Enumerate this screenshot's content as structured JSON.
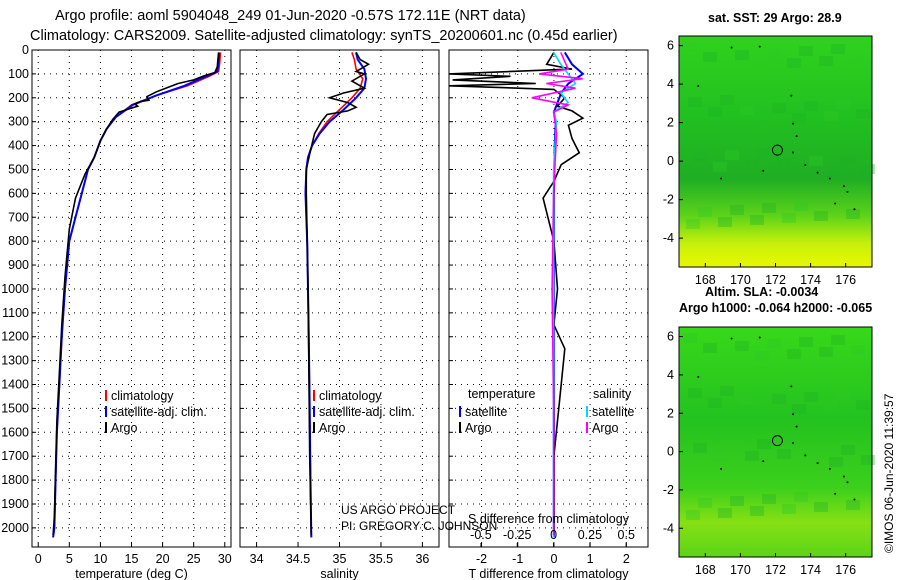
{
  "header": {
    "line1": "Argo profile: aoml 5904048_249 01-Jun-2020 -0.57S 172.11E (NRT data)",
    "line2": "Climatology: CARS2009. Satellite-adjusted climatology: synTS_20200601.nc (0.45d earlier)"
  },
  "colors": {
    "climatology": "#ff0000",
    "satellite_adj": "#0000ff",
    "argo": "#000000",
    "s_satellite": "#00d8ff",
    "s_argo": "#ff00ff"
  },
  "chart_data": [
    {
      "id": "temperature",
      "type": "line",
      "xlabel": "temperature (deg C)",
      "ylabel": "",
      "xlim": [
        -1,
        31
      ],
      "ylim": [
        2080,
        0
      ],
      "xticks": [
        0,
        5,
        10,
        15,
        20,
        25,
        30
      ],
      "yticks": [
        0,
        100,
        200,
        300,
        400,
        500,
        600,
        700,
        800,
        900,
        1000,
        1100,
        1200,
        1300,
        1400,
        1500,
        1600,
        1700,
        1800,
        1900,
        2000
      ],
      "legend": [
        "climatology",
        "satellite-adj. clim.",
        "Argo"
      ],
      "series": [
        {
          "name": "climatology",
          "color": "climatology",
          "x": [
            29.3,
            29.2,
            29.0,
            27.5,
            24.0,
            19.0,
            15.0,
            12.5,
            11.0,
            10.0,
            9.0,
            8.0,
            7.0,
            6.0,
            5.0,
            4.3,
            3.8,
            3.4,
            3.0,
            2.8,
            2.6,
            2.4
          ],
          "y": [
            10,
            50,
            90,
            110,
            150,
            190,
            230,
            280,
            330,
            380,
            450,
            500,
            600,
            700,
            800,
            1000,
            1200,
            1400,
            1600,
            1800,
            2000,
            2040
          ]
        },
        {
          "name": "satellite-adj. clim.",
          "color": "satellite_adj",
          "x": [
            29.1,
            29.0,
            28.8,
            27.0,
            23.5,
            19.0,
            15.2,
            12.5,
            11.0,
            10.0,
            9.0,
            8.0,
            7.0,
            6.0,
            5.0,
            4.3,
            3.8,
            3.4,
            3.0,
            2.8,
            2.6,
            2.4
          ],
          "y": [
            10,
            50,
            90,
            110,
            150,
            190,
            230,
            280,
            330,
            380,
            450,
            500,
            600,
            700,
            800,
            1000,
            1200,
            1400,
            1600,
            1800,
            2000,
            2040
          ]
        },
        {
          "name": "Argo",
          "color": "argo",
          "x": [
            29.0,
            28.9,
            28.8,
            28.4,
            27.0,
            26.5,
            25.0,
            22.5,
            20.5,
            19.0,
            17.5,
            17.8,
            16.5,
            15.5,
            16.0,
            13.0,
            12.0,
            11.0,
            10.0,
            9.0,
            7.5,
            6.0,
            5.0,
            4.3,
            3.8,
            3.4,
            3.0,
            2.8,
            2.6,
            2.4
          ],
          "y": [
            10,
            40,
            70,
            95,
            105,
            110,
            125,
            140,
            160,
            175,
            195,
            210,
            215,
            225,
            235,
            260,
            290,
            330,
            380,
            450,
            520,
            620,
            750,
            950,
            1150,
            1350,
            1550,
            1750,
            1950,
            2030
          ]
        }
      ]
    },
    {
      "id": "salinity",
      "type": "line",
      "xlabel": "salinity",
      "xlim": [
        33.8,
        36.2
      ],
      "ylim": [
        2080,
        0
      ],
      "xticks": [
        34,
        34.5,
        35,
        35.5,
        36
      ],
      "legend": [
        "climatology",
        "satellite-adj. clim.",
        "Argo"
      ],
      "series": [
        {
          "name": "climatology",
          "color": "climatology",
          "x": [
            35.15,
            35.18,
            35.2,
            35.28,
            35.25,
            35.15,
            35.0,
            34.85,
            34.75,
            34.67,
            34.62,
            34.6,
            34.59,
            34.6,
            34.61,
            34.62,
            34.63,
            34.64,
            34.65,
            34.66
          ],
          "y": [
            10,
            40,
            80,
            120,
            160,
            200,
            250,
            300,
            350,
            400,
            450,
            500,
            600,
            700,
            800,
            1000,
            1200,
            1500,
            1800,
            2040
          ]
        },
        {
          "name": "satellite-adj. clim.",
          "color": "satellite_adj",
          "x": [
            35.2,
            35.22,
            35.3,
            35.32,
            35.3,
            35.2,
            35.05,
            34.88,
            34.76,
            34.67,
            34.62,
            34.6,
            34.59,
            34.6,
            34.61,
            34.62,
            34.63,
            34.64,
            34.65,
            34.66
          ],
          "y": [
            10,
            40,
            80,
            120,
            160,
            200,
            250,
            300,
            350,
            400,
            450,
            500,
            600,
            700,
            800,
            1000,
            1200,
            1500,
            1800,
            2040
          ]
        },
        {
          "name": "Argo",
          "color": "argo",
          "x": [
            35.2,
            35.25,
            35.35,
            35.2,
            35.3,
            35.15,
            35.3,
            35.05,
            34.88,
            35.1,
            35.2,
            35.1,
            34.85,
            34.78,
            34.7,
            34.65,
            34.6,
            34.6,
            34.61,
            34.62,
            34.63,
            34.64,
            34.66
          ],
          "y": [
            10,
            40,
            60,
            90,
            100,
            130,
            160,
            180,
            200,
            220,
            240,
            255,
            270,
            300,
            350,
            420,
            500,
            600,
            800,
            1000,
            1300,
            1700,
            2030
          ]
        }
      ]
    },
    {
      "id": "differences",
      "type": "line",
      "xlabel": "T difference from climatology",
      "xlabel_top": "S difference from climatology",
      "xlim": [
        -2.9,
        2.6
      ],
      "ylim": [
        2080,
        0
      ],
      "xticks": [
        -2,
        -1,
        0,
        1,
        2
      ],
      "sticks": [
        -0.5,
        -0.25,
        0,
        0.25,
        0.5
      ],
      "slim": [
        -0.72,
        0.65
      ],
      "legend_left_title": "temperature",
      "legend_right_title": "salinity",
      "legend": [
        "satellite",
        "Argo",
        "satellite",
        "Argo"
      ],
      "series": [
        {
          "name": "T satellite",
          "color": "satellite_adj",
          "axis": "T",
          "x": [
            0.3,
            0.5,
            0.8,
            0.4,
            0.2,
            0.1,
            0.0,
            0.05,
            0.02,
            0.0,
            0.0,
            0.0
          ],
          "y": [
            10,
            60,
            100,
            140,
            180,
            220,
            260,
            300,
            400,
            600,
            1200,
            2040
          ]
        },
        {
          "name": "T Argo",
          "color": "argo",
          "axis": "T",
          "x": [
            0.0,
            -0.2,
            0.5,
            -2.9,
            -1.2,
            -2.8,
            -0.5,
            -2.9,
            0.0,
            0.3,
            0.1,
            0.5,
            0.8,
            0.4,
            0.5,
            0.6,
            0.7,
            0.2,
            0.0,
            -0.3,
            0.0,
            0.1,
            0.0,
            0.3,
            0.2,
            0.0,
            0.0
          ],
          "y": [
            10,
            60,
            80,
            100,
            110,
            125,
            140,
            150,
            165,
            200,
            235,
            255,
            285,
            315,
            370,
            400,
            430,
            480,
            550,
            620,
            800,
            1000,
            1150,
            1250,
            1400,
            1700,
            2030
          ]
        },
        {
          "name": "S satellite",
          "color": "s_satellite",
          "axis": "S",
          "x": [
            0.0,
            0.05,
            0.1,
            0.15,
            0.05,
            0.1,
            0.0,
            0.02,
            0.0,
            0.0,
            0.0
          ],
          "y": [
            10,
            60,
            100,
            140,
            180,
            220,
            260,
            300,
            500,
            1200,
            2040
          ]
        },
        {
          "name": "S Argo",
          "color": "s_argo",
          "axis": "S",
          "x": [
            0.05,
            0.1,
            -0.1,
            0.2,
            -0.05,
            0.15,
            -0.15,
            0.1,
            0.0,
            0.02,
            0.0,
            -0.01,
            0.0,
            0.0
          ],
          "y": [
            10,
            80,
            100,
            120,
            140,
            160,
            200,
            230,
            260,
            350,
            600,
            1000,
            1500,
            2030
          ]
        }
      ]
    }
  ],
  "maps": [
    {
      "id": "sst-map",
      "title_parts": [
        "sat. SST:",
        "29",
        "Argo:",
        "28.9"
      ],
      "xticks": [
        168,
        170,
        172,
        174,
        176
      ],
      "yticks": [
        6,
        4,
        2,
        0,
        -2,
        -4
      ],
      "marker": {
        "lon": 172.11,
        "lat": 0.57
      }
    },
    {
      "id": "sla-map",
      "title_line1": "Altim. SLA: -0.0034",
      "title_line2": "Argo h1000: -0.064 h2000: -0.065",
      "xticks": [
        168,
        170,
        172,
        174,
        176
      ],
      "yticks": [
        6,
        4,
        2,
        0,
        -2,
        -4
      ],
      "marker": {
        "lon": 172.11,
        "lat": 0.57
      }
    }
  ],
  "credits": {
    "line1": "US ARGO PROJECT",
    "line2": "PI: GREGORY C. JOHNSON",
    "stamp": "©IMOS 06-Jun-2020 11:39:57"
  }
}
